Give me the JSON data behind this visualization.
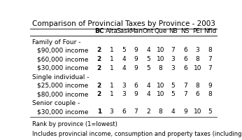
{
  "title": "Comparison of Provincial Taxes by Province - 2003",
  "columns": [
    "BC",
    "Alta",
    "Sask",
    "Man",
    "Ont",
    "Que",
    "NB",
    "NS",
    "PEI",
    "Nfld"
  ],
  "sections": [
    {
      "header": "Family of Four -",
      "rows": [
        {
          "label": "$90,000 income",
          "values": [
            2,
            1,
            5,
            9,
            4,
            10,
            7,
            6,
            3,
            8
          ],
          "bold_first": true
        },
        {
          "label": "$60,000 income",
          "values": [
            2,
            1,
            4,
            9,
            5,
            10,
            3,
            6,
            8,
            7
          ],
          "bold_first": true
        },
        {
          "label": "$30,000 income",
          "values": [
            2,
            1,
            4,
            9,
            5,
            8,
            3,
            6,
            10,
            7
          ],
          "bold_first": true
        }
      ]
    },
    {
      "header": "Single individual -",
      "rows": [
        {
          "label": "$25,000 income",
          "values": [
            2,
            1,
            3,
            6,
            4,
            10,
            5,
            7,
            8,
            9
          ],
          "bold_first": true
        },
        {
          "label": "$80,000 income",
          "values": [
            2,
            1,
            3,
            9,
            4,
            10,
            5,
            7,
            6,
            8
          ],
          "bold_first": true
        }
      ]
    },
    {
      "header": "Senior couple -",
      "rows": [
        {
          "label": "$30,000 income",
          "values": [
            1,
            3,
            6,
            7,
            2,
            8,
            4,
            9,
            10,
            5
          ],
          "bold_first": true
        }
      ]
    }
  ],
  "footnote1": "Rank by province (1=lowest)",
  "footnote2": "Includes provincial income, consumption and property taxes (including municipal property taxes)",
  "background_color": "#ffffff",
  "font_size": 6.5,
  "title_font_size": 7.5
}
